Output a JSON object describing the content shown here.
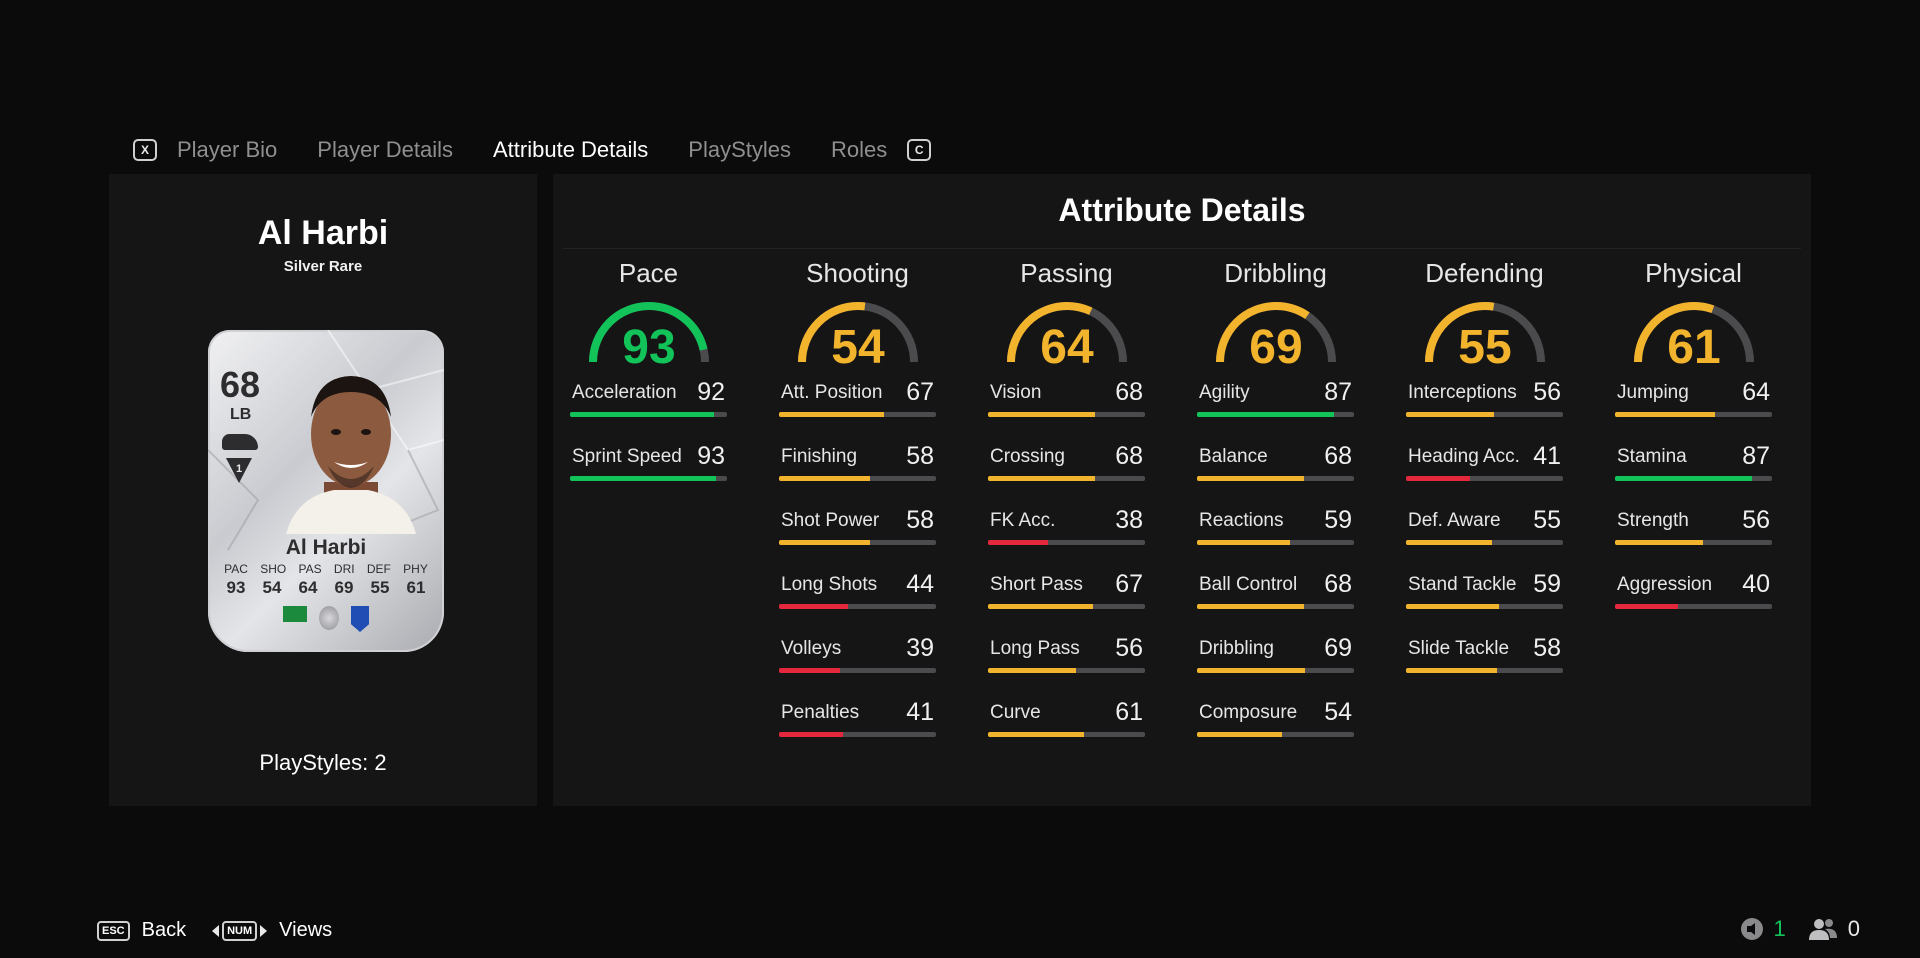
{
  "tabs": {
    "left_key": "X",
    "right_key": "C",
    "items": [
      "Player Bio",
      "Player Details",
      "Attribute Details",
      "PlayStyles",
      "Roles"
    ],
    "active_index": 2
  },
  "player": {
    "name": "Al Harbi",
    "rarity": "Silver Rare",
    "card": {
      "rating": "68",
      "position": "LB",
      "name": "Al Harbi",
      "stat_labels": [
        "PAC",
        "SHO",
        "PAS",
        "DRI",
        "DEF",
        "PHY"
      ],
      "stat_values": [
        "93",
        "54",
        "64",
        "69",
        "55",
        "61"
      ]
    },
    "playstyles": "PlayStyles: 2"
  },
  "attributes": {
    "title": "Attribute Details",
    "colors": {
      "green": "#12c35a",
      "yellow": "#f3b42d",
      "red": "#e3273d",
      "track": "#4b4b4d"
    },
    "categories": [
      {
        "name": "Pace",
        "value": 93,
        "stats": [
          {
            "name": "Acceleration",
            "value": 92
          },
          {
            "name": "Sprint Speed",
            "value": 93
          }
        ]
      },
      {
        "name": "Shooting",
        "value": 54,
        "stats": [
          {
            "name": "Att. Position",
            "value": 67
          },
          {
            "name": "Finishing",
            "value": 58
          },
          {
            "name": "Shot Power",
            "value": 58
          },
          {
            "name": "Long Shots",
            "value": 44
          },
          {
            "name": "Volleys",
            "value": 39
          },
          {
            "name": "Penalties",
            "value": 41
          }
        ]
      },
      {
        "name": "Passing",
        "value": 64,
        "stats": [
          {
            "name": "Vision",
            "value": 68
          },
          {
            "name": "Crossing",
            "value": 68
          },
          {
            "name": "FK Acc.",
            "value": 38
          },
          {
            "name": "Short Pass",
            "value": 67
          },
          {
            "name": "Long Pass",
            "value": 56
          },
          {
            "name": "Curve",
            "value": 61
          }
        ]
      },
      {
        "name": "Dribbling",
        "value": 69,
        "stats": [
          {
            "name": "Agility",
            "value": 87
          },
          {
            "name": "Balance",
            "value": 68
          },
          {
            "name": "Reactions",
            "value": 59
          },
          {
            "name": "Ball Control",
            "value": 68
          },
          {
            "name": "Dribbling",
            "value": 69
          },
          {
            "name": "Composure",
            "value": 54
          }
        ]
      },
      {
        "name": "Defending",
        "value": 55,
        "stats": [
          {
            "name": "Interceptions",
            "value": 56
          },
          {
            "name": "Heading Acc.",
            "value": 41
          },
          {
            "name": "Def. Aware",
            "value": 55
          },
          {
            "name": "Stand Tackle",
            "value": 59
          },
          {
            "name": "Slide Tackle",
            "value": 58
          }
        ]
      },
      {
        "name": "Physical",
        "value": 61,
        "stats": [
          {
            "name": "Jumping",
            "value": 64
          },
          {
            "name": "Stamina",
            "value": 87
          },
          {
            "name": "Strength",
            "value": 56
          },
          {
            "name": "Aggression",
            "value": 40
          }
        ]
      }
    ]
  },
  "footer": {
    "back_key": "ESC",
    "back_label": "Back",
    "views_key": "NUM",
    "views_label": "Views",
    "count_a": "1",
    "count_b": "0"
  }
}
